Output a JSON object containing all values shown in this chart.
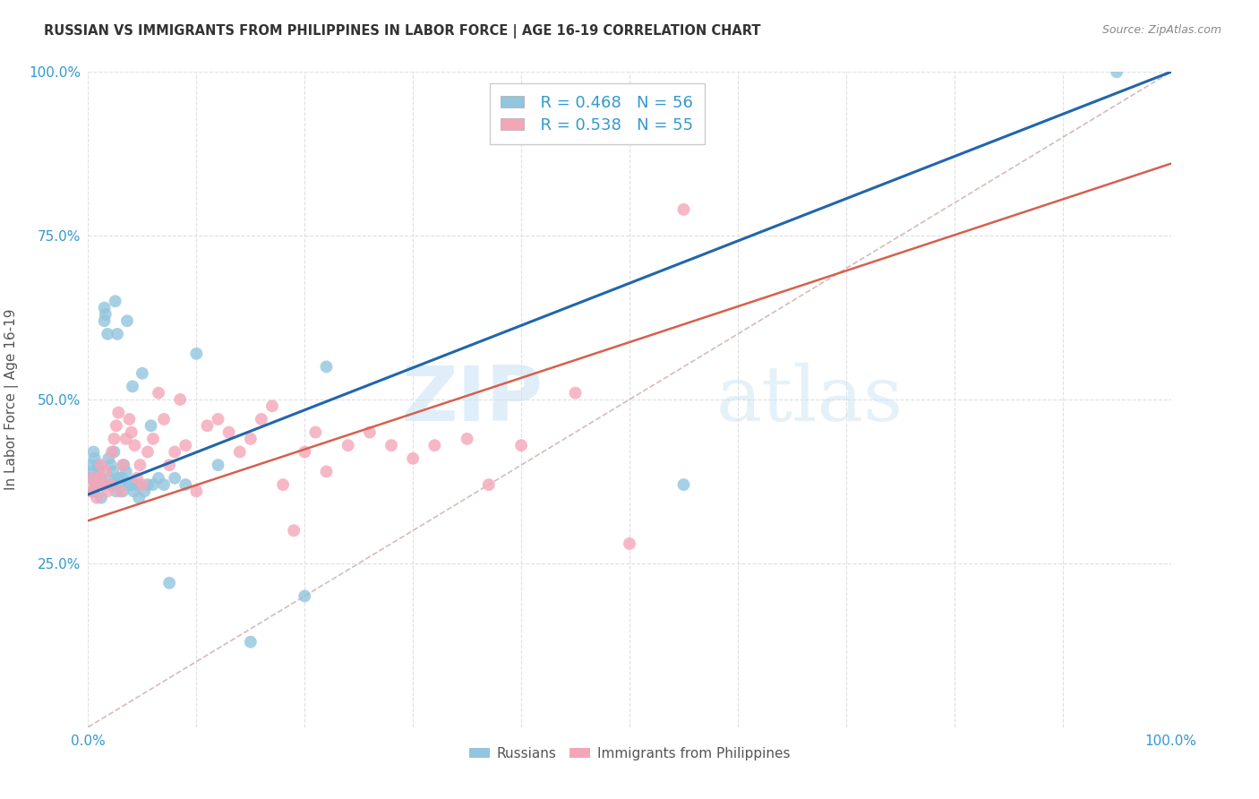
{
  "title": "RUSSIAN VS IMMIGRANTS FROM PHILIPPINES IN LABOR FORCE | AGE 16-19 CORRELATION CHART",
  "source": "Source: ZipAtlas.com",
  "ylabel": "In Labor Force | Age 16-19",
  "xlim": [
    0.0,
    1.0
  ],
  "ylim": [
    0.0,
    1.0
  ],
  "xticklabels": [
    "0.0%",
    "",
    "",
    "",
    "",
    "",
    "",
    "",
    "",
    "",
    "100.0%"
  ],
  "yticklabels": [
    "",
    "25.0%",
    "50.0%",
    "75.0%",
    "100.0%"
  ],
  "legend_r_russian": "R = 0.468",
  "legend_n_russian": "N = 56",
  "legend_r_phil": "R = 0.538",
  "legend_n_phil": "N = 55",
  "color_russian": "#92c5de",
  "color_phil": "#f4a6b8",
  "color_russian_line": "#2166ac",
  "color_phil_line": "#d6604d",
  "color_diag": "#ccaaaa",
  "watermark_zip": "ZIP",
  "watermark_atlas": "atlas",
  "background_color": "#ffffff",
  "grid_color": "#e0e0e0",
  "russian_scatter_x": [
    0.002,
    0.003,
    0.004,
    0.005,
    0.005,
    0.006,
    0.007,
    0.008,
    0.009,
    0.01,
    0.011,
    0.012,
    0.013,
    0.015,
    0.015,
    0.016,
    0.018,
    0.019,
    0.02,
    0.021,
    0.022,
    0.023,
    0.024,
    0.025,
    0.026,
    0.027,
    0.028,
    0.03,
    0.031,
    0.032,
    0.033,
    0.035,
    0.036,
    0.038,
    0.04,
    0.041,
    0.042,
    0.045,
    0.047,
    0.05,
    0.052,
    0.055,
    0.058,
    0.06,
    0.065,
    0.07,
    0.075,
    0.08,
    0.09,
    0.1,
    0.12,
    0.15,
    0.2,
    0.22,
    0.55,
    0.95
  ],
  "russian_scatter_y": [
    0.4,
    0.38,
    0.39,
    0.42,
    0.36,
    0.41,
    0.38,
    0.37,
    0.4,
    0.39,
    0.38,
    0.35,
    0.37,
    0.62,
    0.64,
    0.63,
    0.6,
    0.41,
    0.38,
    0.4,
    0.37,
    0.39,
    0.42,
    0.65,
    0.36,
    0.6,
    0.38,
    0.37,
    0.38,
    0.36,
    0.4,
    0.39,
    0.62,
    0.37,
    0.37,
    0.52,
    0.36,
    0.37,
    0.35,
    0.54,
    0.36,
    0.37,
    0.46,
    0.37,
    0.38,
    0.37,
    0.22,
    0.38,
    0.37,
    0.57,
    0.4,
    0.13,
    0.2,
    0.55,
    0.37,
    1.0
  ],
  "phil_scatter_x": [
    0.002,
    0.004,
    0.006,
    0.008,
    0.01,
    0.012,
    0.014,
    0.016,
    0.018,
    0.02,
    0.022,
    0.024,
    0.026,
    0.028,
    0.03,
    0.032,
    0.035,
    0.038,
    0.04,
    0.043,
    0.045,
    0.048,
    0.05,
    0.055,
    0.06,
    0.065,
    0.07,
    0.075,
    0.08,
    0.085,
    0.09,
    0.1,
    0.11,
    0.12,
    0.13,
    0.14,
    0.15,
    0.16,
    0.17,
    0.18,
    0.19,
    0.2,
    0.21,
    0.22,
    0.24,
    0.26,
    0.28,
    0.3,
    0.32,
    0.35,
    0.37,
    0.4,
    0.45,
    0.5,
    0.55
  ],
  "phil_scatter_y": [
    0.36,
    0.38,
    0.37,
    0.35,
    0.38,
    0.4,
    0.37,
    0.39,
    0.36,
    0.37,
    0.42,
    0.44,
    0.46,
    0.48,
    0.36,
    0.4,
    0.44,
    0.47,
    0.45,
    0.43,
    0.38,
    0.4,
    0.37,
    0.42,
    0.44,
    0.51,
    0.47,
    0.4,
    0.42,
    0.5,
    0.43,
    0.36,
    0.46,
    0.47,
    0.45,
    0.42,
    0.44,
    0.47,
    0.49,
    0.37,
    0.3,
    0.42,
    0.45,
    0.39,
    0.43,
    0.45,
    0.43,
    0.41,
    0.43,
    0.44,
    0.37,
    0.43,
    0.51,
    0.28,
    0.79
  ],
  "russian_line_x0": 0.0,
  "russian_line_y0": 0.355,
  "russian_line_x1": 1.0,
  "russian_line_y1": 1.0,
  "phil_line_x0": 0.0,
  "phil_line_y0": 0.315,
  "phil_line_x1": 1.0,
  "phil_line_y1": 0.86
}
